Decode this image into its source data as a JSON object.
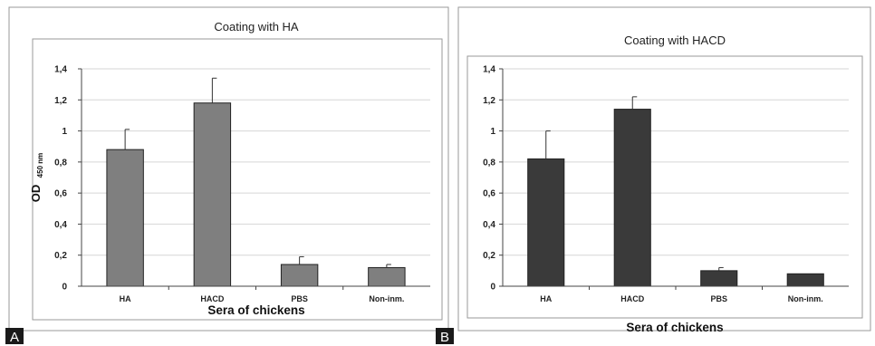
{
  "figure": {
    "ylabel_main": "OD",
    "ylabel_sub": "450 nm"
  },
  "chart_data": [
    {
      "type": "bar",
      "panel_label": "A",
      "title": "Coating with HA",
      "xlabel": "Sera of chickens",
      "ylabel": "OD 450 nm",
      "categories": [
        "HA",
        "HACD",
        "PBS",
        "Non-inm."
      ],
      "values": [
        0.88,
        1.18,
        0.14,
        0.12
      ],
      "error": [
        0.13,
        0.16,
        0.05,
        0.02
      ],
      "ylim": [
        0,
        1.4
      ],
      "yticks": [
        "0",
        "0,2",
        "0,4",
        "0,6",
        "0,8",
        "1",
        "1,2",
        "1,4"
      ],
      "grid": true,
      "color": "#7f7f7f"
    },
    {
      "type": "bar",
      "panel_label": "B",
      "title": "Coating with HACD",
      "xlabel": "Sera of chickens",
      "ylabel": "",
      "categories": [
        "HA",
        "HACD",
        "PBS",
        "Non-inm."
      ],
      "values": [
        0.82,
        1.14,
        0.1,
        0.08
      ],
      "error": [
        0.18,
        0.08,
        0.02,
        0.0
      ],
      "ylim": [
        0,
        1.4
      ],
      "yticks": [
        "0",
        "0,2",
        "0,4",
        "0,6",
        "0,8",
        "1",
        "1,2",
        "1,4"
      ],
      "grid": true,
      "color": "#3a3a3a"
    }
  ]
}
